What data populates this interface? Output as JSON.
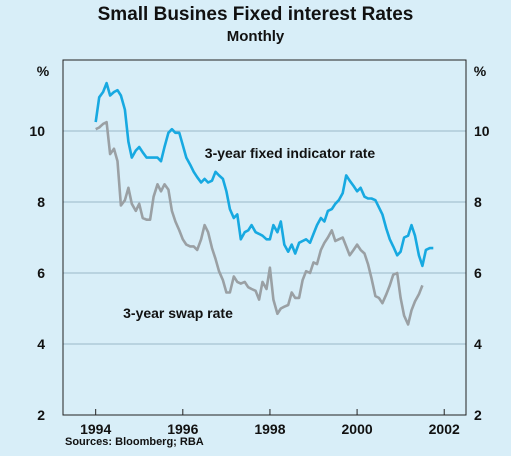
{
  "chart_data": {
    "type": "line",
    "title": "Small Busines Fixed interest Rates",
    "subtitle": "Monthly",
    "ylabel_left": "%",
    "ylabel_right": "%",
    "xlim": [
      1993.25,
      2002.5
    ],
    "ylim": [
      2,
      12
    ],
    "x_ticks": [
      1994,
      1996,
      1998,
      2000,
      2002
    ],
    "y_ticks": [
      2,
      4,
      6,
      8,
      10
    ],
    "grid": true,
    "annotations": [
      "3-year fixed indicator rate",
      "3-year swap rate"
    ],
    "series": [
      {
        "name": "3-year fixed indicator rate",
        "color": "#17a9e1",
        "points": [
          [
            1994.0,
            10.25
          ],
          [
            1994.08,
            10.95
          ],
          [
            1994.17,
            11.1
          ],
          [
            1994.25,
            11.35
          ],
          [
            1994.33,
            11.0
          ],
          [
            1994.42,
            11.1
          ],
          [
            1994.5,
            11.15
          ],
          [
            1994.58,
            11.0
          ],
          [
            1994.67,
            10.6
          ],
          [
            1994.75,
            9.7
          ],
          [
            1994.83,
            9.25
          ],
          [
            1994.92,
            9.45
          ],
          [
            1995.0,
            9.55
          ],
          [
            1995.08,
            9.4
          ],
          [
            1995.17,
            9.25
          ],
          [
            1995.25,
            9.25
          ],
          [
            1995.33,
            9.25
          ],
          [
            1995.42,
            9.25
          ],
          [
            1995.5,
            9.15
          ],
          [
            1995.58,
            9.55
          ],
          [
            1995.67,
            9.95
          ],
          [
            1995.75,
            10.05
          ],
          [
            1995.83,
            9.95
          ],
          [
            1995.92,
            9.95
          ],
          [
            1996.0,
            9.6
          ],
          [
            1996.08,
            9.25
          ],
          [
            1996.17,
            9.05
          ],
          [
            1996.25,
            8.85
          ],
          [
            1996.33,
            8.7
          ],
          [
            1996.42,
            8.55
          ],
          [
            1996.5,
            8.65
          ],
          [
            1996.58,
            8.55
          ],
          [
            1996.67,
            8.6
          ],
          [
            1996.75,
            8.85
          ],
          [
            1996.83,
            8.75
          ],
          [
            1996.92,
            8.65
          ],
          [
            1997.0,
            8.3
          ],
          [
            1997.08,
            7.8
          ],
          [
            1997.17,
            7.55
          ],
          [
            1997.25,
            7.65
          ],
          [
            1997.33,
            6.95
          ],
          [
            1997.42,
            7.15
          ],
          [
            1997.5,
            7.2
          ],
          [
            1997.58,
            7.35
          ],
          [
            1997.67,
            7.15
          ],
          [
            1997.75,
            7.1
          ],
          [
            1997.83,
            7.05
          ],
          [
            1997.92,
            6.95
          ],
          [
            1998.0,
            6.95
          ],
          [
            1998.08,
            7.35
          ],
          [
            1998.17,
            7.15
          ],
          [
            1998.25,
            7.45
          ],
          [
            1998.33,
            6.8
          ],
          [
            1998.42,
            6.6
          ],
          [
            1998.5,
            6.8
          ],
          [
            1998.58,
            6.55
          ],
          [
            1998.67,
            6.85
          ],
          [
            1998.75,
            6.9
          ],
          [
            1998.83,
            6.95
          ],
          [
            1998.92,
            6.85
          ],
          [
            1999.0,
            7.1
          ],
          [
            1999.08,
            7.35
          ],
          [
            1999.17,
            7.55
          ],
          [
            1999.25,
            7.45
          ],
          [
            1999.33,
            7.75
          ],
          [
            1999.42,
            7.8
          ],
          [
            1999.5,
            7.95
          ],
          [
            1999.58,
            8.05
          ],
          [
            1999.67,
            8.25
          ],
          [
            1999.75,
            8.75
          ],
          [
            1999.83,
            8.6
          ],
          [
            1999.92,
            8.45
          ],
          [
            2000.0,
            8.3
          ],
          [
            2000.08,
            8.4
          ],
          [
            2000.17,
            8.15
          ],
          [
            2000.25,
            8.1
          ],
          [
            2000.33,
            8.1
          ],
          [
            2000.42,
            8.05
          ],
          [
            2000.5,
            7.85
          ],
          [
            2000.58,
            7.65
          ],
          [
            2000.67,
            7.25
          ],
          [
            2000.75,
            6.95
          ],
          [
            2000.83,
            6.75
          ],
          [
            2000.92,
            6.5
          ],
          [
            2001.0,
            6.6
          ],
          [
            2001.08,
            7.0
          ],
          [
            2001.17,
            7.05
          ],
          [
            2001.25,
            7.35
          ],
          [
            2001.33,
            7.05
          ],
          [
            2001.42,
            6.5
          ],
          [
            2001.5,
            6.2
          ],
          [
            2001.58,
            6.65
          ],
          [
            2001.67,
            6.7
          ],
          [
            2001.75,
            6.7
          ]
        ]
      },
      {
        "name": "3-year swap rate",
        "color": "#9aa0a4",
        "points": [
          [
            1994.0,
            10.05
          ],
          [
            1994.08,
            10.1
          ],
          [
            1994.17,
            10.2
          ],
          [
            1994.25,
            10.25
          ],
          [
            1994.33,
            9.35
          ],
          [
            1994.42,
            9.5
          ],
          [
            1994.5,
            9.15
          ],
          [
            1994.58,
            7.9
          ],
          [
            1994.67,
            8.05
          ],
          [
            1994.75,
            8.4
          ],
          [
            1994.83,
            7.95
          ],
          [
            1994.92,
            7.75
          ],
          [
            1995.0,
            7.95
          ],
          [
            1995.08,
            7.55
          ],
          [
            1995.17,
            7.5
          ],
          [
            1995.25,
            7.5
          ],
          [
            1995.33,
            8.15
          ],
          [
            1995.42,
            8.5
          ],
          [
            1995.5,
            8.3
          ],
          [
            1995.58,
            8.5
          ],
          [
            1995.67,
            8.35
          ],
          [
            1995.75,
            7.75
          ],
          [
            1995.83,
            7.45
          ],
          [
            1995.92,
            7.2
          ],
          [
            1996.0,
            6.95
          ],
          [
            1996.08,
            6.8
          ],
          [
            1996.17,
            6.75
          ],
          [
            1996.25,
            6.75
          ],
          [
            1996.33,
            6.65
          ],
          [
            1996.42,
            6.95
          ],
          [
            1996.5,
            7.35
          ],
          [
            1996.58,
            7.15
          ],
          [
            1996.67,
            6.7
          ],
          [
            1996.75,
            6.4
          ],
          [
            1996.83,
            6.05
          ],
          [
            1996.92,
            5.8
          ],
          [
            1997.0,
            5.45
          ],
          [
            1997.08,
            5.45
          ],
          [
            1997.17,
            5.9
          ],
          [
            1997.25,
            5.75
          ],
          [
            1997.33,
            5.7
          ],
          [
            1997.42,
            5.75
          ],
          [
            1997.5,
            5.6
          ],
          [
            1997.58,
            5.55
          ],
          [
            1997.67,
            5.5
          ],
          [
            1997.75,
            5.25
          ],
          [
            1997.83,
            5.75
          ],
          [
            1997.92,
            5.55
          ],
          [
            1998.0,
            6.15
          ],
          [
            1998.08,
            5.25
          ],
          [
            1998.17,
            4.85
          ],
          [
            1998.25,
            5.0
          ],
          [
            1998.33,
            5.05
          ],
          [
            1998.42,
            5.1
          ],
          [
            1998.5,
            5.45
          ],
          [
            1998.58,
            5.3
          ],
          [
            1998.67,
            5.3
          ],
          [
            1998.75,
            5.8
          ],
          [
            1998.83,
            6.05
          ],
          [
            1998.92,
            6.0
          ],
          [
            1999.0,
            6.3
          ],
          [
            1999.08,
            6.25
          ],
          [
            1999.17,
            6.65
          ],
          [
            1999.25,
            6.85
          ],
          [
            1999.33,
            7.0
          ],
          [
            1999.42,
            7.2
          ],
          [
            1999.5,
            6.9
          ],
          [
            1999.58,
            6.95
          ],
          [
            1999.67,
            7.0
          ],
          [
            1999.75,
            6.75
          ],
          [
            1999.83,
            6.5
          ],
          [
            1999.92,
            6.65
          ],
          [
            2000.0,
            6.8
          ],
          [
            2000.08,
            6.65
          ],
          [
            2000.17,
            6.55
          ],
          [
            2000.25,
            6.25
          ],
          [
            2000.33,
            5.85
          ],
          [
            2000.42,
            5.35
          ],
          [
            2000.5,
            5.3
          ],
          [
            2000.58,
            5.15
          ],
          [
            2000.67,
            5.4
          ],
          [
            2000.75,
            5.65
          ],
          [
            2000.83,
            5.95
          ],
          [
            2000.92,
            6.0
          ],
          [
            2001.0,
            5.3
          ],
          [
            2001.08,
            4.8
          ],
          [
            2001.17,
            4.55
          ],
          [
            2001.25,
            4.95
          ],
          [
            2001.33,
            5.2
          ],
          [
            2001.42,
            5.4
          ],
          [
            2001.5,
            5.65
          ]
        ]
      }
    ]
  },
  "source_note": "Sources: Bloomberg; RBA"
}
